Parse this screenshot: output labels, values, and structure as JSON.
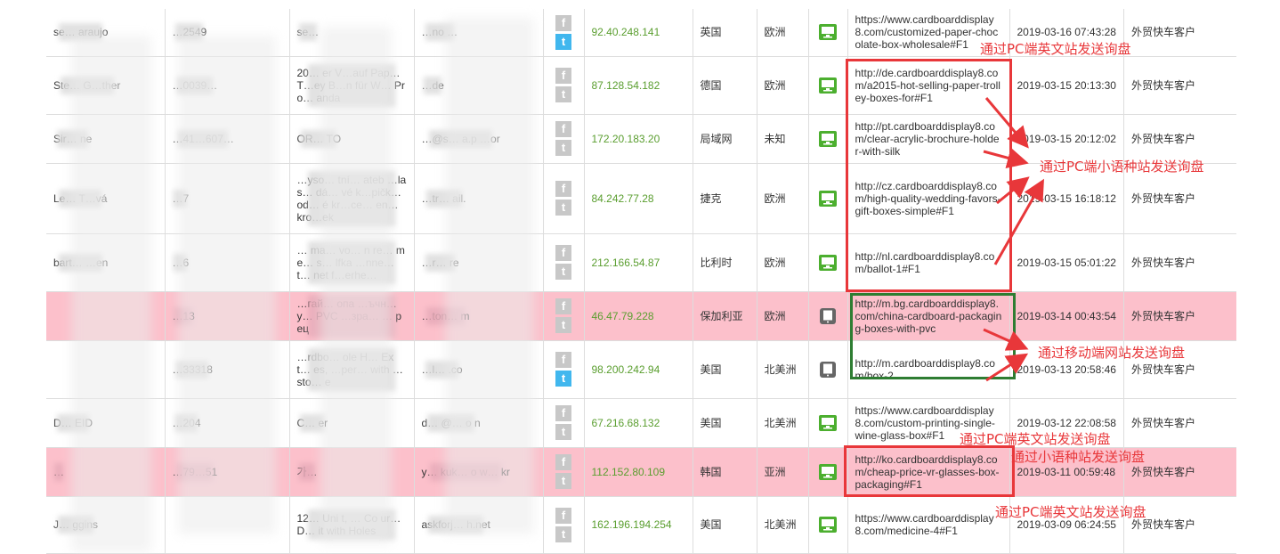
{
  "rows": [
    {
      "name": "se… araujo",
      "phone": "…2549",
      "company": "se…",
      "email": "…no …",
      "fb": "f",
      "tw": "t",
      "tw_active": true,
      "ip": "92.40.248.141",
      "country": "英国",
      "continent": "欧洲",
      "device": "desktop-icon",
      "url": "https://www.cardboarddisplay8.com/customized-paper-chocolate-box-wholesale#F1",
      "time": "2019-03-16 07:43:28",
      "source": "外贸快车客户",
      "highlight": false
    },
    {
      "name": "Ste… G…ther",
      "phone": "…0039…",
      "company": "20… er V…auf Pap… T…ey B…n für W… Pro… anda",
      "email": "…de",
      "fb": "f",
      "tw": "t",
      "tw_active": false,
      "ip": "87.128.54.182",
      "country": "德国",
      "continent": "欧洲",
      "device": "desktop-icon",
      "url": "http://de.cardboarddisplay8.com/a2015-hot-selling-paper-trolley-boxes-for#F1",
      "time": "2019-03-15 20:13:30",
      "source": "外贸快车客户",
      "highlight": false
    },
    {
      "name": "Sir… ne",
      "phone": "…41…607…",
      "company": "OR… TO",
      "email": "…@s… a.p …or",
      "fb": "f",
      "tw": "t",
      "tw_active": false,
      "ip": "172.20.183.20",
      "country": "局域网",
      "continent": "未知",
      "device": "desktop-icon",
      "url": "http://pt.cardboarddisplay8.com/clear-acrylic-brochure-holder-with-silk",
      "time": "2019-03-15 20:12:02",
      "source": "外贸快车客户",
      "highlight": false
    },
    {
      "name": "Le… T…vá",
      "phone": "…7",
      "company": "…yso… tní… ateb …las… dá… vé k…pičk… od… é kr…ce… en… kro…ek",
      "email": "…tr… ail.",
      "fb": "f",
      "tw": "t",
      "tw_active": false,
      "ip": "84.242.77.28",
      "country": "捷克",
      "continent": "欧洲",
      "device": "desktop-icon",
      "url": "http://cz.cardboarddisplay8.com/high-quality-wedding-favors-gift-boxes-simple#F1",
      "time": "2019-03-15 16:18:12",
      "source": "外贸快车客户",
      "highlight": false
    },
    {
      "name": "bart… …en",
      "phone": "…6",
      "company": "… ma… vo… n re… me… s… lfka …nne… t… net f…erhe…",
      "email": "…r… re",
      "fb": "f",
      "tw": "t",
      "tw_active": false,
      "ip": "212.166.54.87",
      "country": "比利时",
      "continent": "欧洲",
      "device": "desktop-icon",
      "url": "http://nl.cardboarddisplay8.com/ballot-1#F1",
      "time": "2019-03-15 05:01:22",
      "source": "外贸快车客户",
      "highlight": false
    },
    {
      "name": "",
      "phone": "…13",
      "company": "…гай… опа …ъчн… у… PVC …зра… … рец",
      "email": "…ton… m",
      "fb": "f",
      "tw": "t",
      "tw_active": false,
      "ip": "46.47.79.228",
      "country": "保加利亚",
      "continent": "欧洲",
      "device": "tablet-icon",
      "url": "http://m.bg.cardboarddisplay8.com/china-cardboard-packaging-boxes-with-pvc",
      "time": "2019-03-14 00:43:54",
      "source": "外贸快车客户",
      "highlight": true
    },
    {
      "name": "",
      "phone": "…33318",
      "company": "…rdbo… ole H… Ext… es, …per… with …sto… e",
      "email": "…l… .co",
      "fb": "f",
      "tw": "t",
      "tw_active": true,
      "ip": "98.200.242.94",
      "country": "美国",
      "continent": "北美洲",
      "device": "tablet-icon",
      "url": "http://m.cardboarddisplay8.com/box-2",
      "time": "2019-03-13 20:58:46",
      "source": "外贸快车客户",
      "highlight": false
    },
    {
      "name": "D… EID",
      "phone": "…204",
      "company": "C… er",
      "email": "d… @… o n",
      "fb": "f",
      "tw": "t",
      "tw_active": false,
      "ip": "67.216.68.132",
      "country": "美国",
      "continent": "北美洲",
      "device": "desktop-icon",
      "url": "https://www.cardboarddisplay8.com/custom-printing-single-wine-glass-box#F1",
      "time": "2019-03-12 22:08:58",
      "source": "外贸快车客户",
      "highlight": false
    },
    {
      "name": "…",
      "phone": "…79…51",
      "company": "가…",
      "email": "y… kuk… o w… kr",
      "fb": "f",
      "tw": "t",
      "tw_active": false,
      "ip": "112.152.80.109",
      "country": "韩国",
      "continent": "亚洲",
      "device": "desktop-icon",
      "url": "http://ko.cardboarddisplay8.com/cheap-price-vr-glasses-box-packaging#F1",
      "time": "2019-03-11 00:59:48",
      "source": "外贸快车客户",
      "highlight": true
    },
    {
      "name": "J… ggins",
      "phone": "",
      "company": "12… Uni t, … Co ur… D… it with Holes",
      "email": "askforj… h.net",
      "fb": "f",
      "tw": "t",
      "tw_active": false,
      "ip": "162.196.194.254",
      "country": "美国",
      "continent": "北美洲",
      "device": "desktop-icon",
      "url": "https://www.cardboarddisplay8.com/medicine-4#F1",
      "time": "2019-03-09 06:24:55",
      "source": "外贸快车客户",
      "highlight": false
    }
  ],
  "annotations": {
    "pc_en_1": "通过PC端英文站发送询盘",
    "pc_minor": "通过PC端小语种站发送询盘",
    "mobile": "通过移动端网站发送询盘",
    "pc_en_2": "通过PC端英文站发送询盘",
    "minor": "通过小语种站发送询盘",
    "pc_en_3": "通过PC端英文站发送询盘"
  },
  "colors": {
    "highlight_row": "#fcc0cb",
    "ip_text": "#5a9e2f",
    "desktop_icon": "#4caf2f",
    "tablet_icon": "#666666",
    "twitter_active": "#41b7ee",
    "annotation_red": "#e8373a",
    "annotation_green": "#2e7d32"
  }
}
